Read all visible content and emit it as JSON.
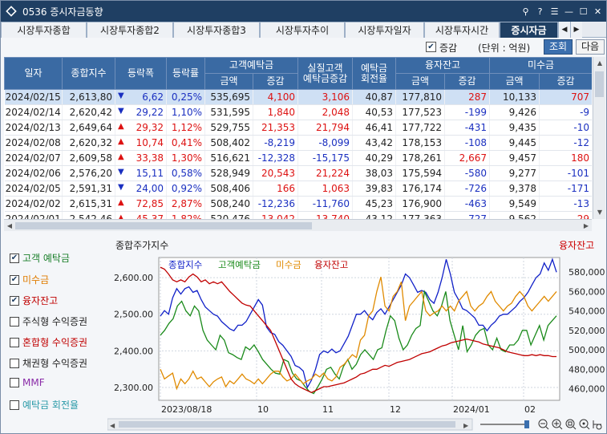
{
  "window": {
    "title": "0536 증시자금동향",
    "icons": [
      "pin-icon",
      "help-icon",
      "settings-icon",
      "minimize-icon",
      "maximize-icon",
      "close-icon"
    ],
    "icon_glyphs": [
      "⚲",
      "?",
      "☰",
      "—",
      "☐",
      "✕"
    ]
  },
  "tabs": [
    {
      "label": "시장투자종합",
      "active": false
    },
    {
      "label": "시장투자종합2",
      "active": false
    },
    {
      "label": "시장투자종합3",
      "active": false
    },
    {
      "label": "시장투자추이",
      "active": false
    },
    {
      "label": "시장투자일자",
      "active": false
    },
    {
      "label": "시장투자시간",
      "active": false
    },
    {
      "label": "증시자금",
      "active": true
    }
  ],
  "options": {
    "change_label": "증감",
    "change_checked": true,
    "unit_label": "(단위 : 억원)",
    "query_button": "조회",
    "next_button": "다음"
  },
  "table": {
    "headers": {
      "date": "일자",
      "index": "종합지수",
      "change": "등락폭",
      "rate": "등락률",
      "deposit": "고객예탁금",
      "real_deposit_1": "실질고객",
      "real_deposit_2": "예탁금증감",
      "turnover_1": "예탁금",
      "turnover_2": "회전율",
      "margin": "융자잔고",
      "receivable": "미수금",
      "amount": "금액",
      "delta": "증감"
    },
    "rows": [
      {
        "date": "2024/02/15",
        "index": "2,613,80",
        "dir": "down",
        "change": "6,62",
        "rate": "0,25%",
        "dep_amt": "535,695",
        "dep_chg": "4,100",
        "real": "3,106",
        "turn": "40,87",
        "mar_amt": "177,810",
        "mar_chg": "287",
        "rec_amt": "10,133",
        "rec_chg": "707"
      },
      {
        "date": "2024/02/14",
        "index": "2,620,42",
        "dir": "down",
        "change": "29,22",
        "rate": "1,10%",
        "dep_amt": "531,595",
        "dep_chg": "1,840",
        "real": "2,048",
        "turn": "40,53",
        "mar_amt": "177,523",
        "mar_chg": "-199",
        "rec_amt": "9,426",
        "rec_chg": "-9"
      },
      {
        "date": "2024/02/13",
        "index": "2,649,64",
        "dir": "up",
        "change": "29,32",
        "rate": "1,12%",
        "dep_amt": "529,755",
        "dep_chg": "21,353",
        "real": "21,794",
        "turn": "46,41",
        "mar_amt": "177,722",
        "mar_chg": "-431",
        "rec_amt": "9,435",
        "rec_chg": "-10"
      },
      {
        "date": "2024/02/08",
        "index": "2,620,32",
        "dir": "up",
        "change": "10,74",
        "rate": "0,41%",
        "dep_amt": "508,402",
        "dep_chg": "-8,219",
        "real": "-8,099",
        "turn": "43,42",
        "mar_amt": "178,153",
        "mar_chg": "-108",
        "rec_amt": "9,445",
        "rec_chg": "-12"
      },
      {
        "date": "2024/02/07",
        "index": "2,609,58",
        "dir": "up",
        "change": "33,38",
        "rate": "1,30%",
        "dep_amt": "516,621",
        "dep_chg": "-12,328",
        "real": "-15,175",
        "turn": "40,29",
        "mar_amt": "178,261",
        "mar_chg": "2,667",
        "rec_amt": "9,457",
        "rec_chg": "180"
      },
      {
        "date": "2024/02/06",
        "index": "2,576,20",
        "dir": "down",
        "change": "15,11",
        "rate": "0,58%",
        "dep_amt": "528,949",
        "dep_chg": "20,543",
        "real": "21,224",
        "turn": "38,03",
        "mar_amt": "175,594",
        "mar_chg": "-580",
        "rec_amt": "9,277",
        "rec_chg": "-101"
      },
      {
        "date": "2024/02/05",
        "index": "2,591,31",
        "dir": "down",
        "change": "24,00",
        "rate": "0,92%",
        "dep_amt": "508,406",
        "dep_chg": "166",
        "real": "1,063",
        "turn": "39,83",
        "mar_amt": "176,174",
        "mar_chg": "-726",
        "rec_amt": "9,378",
        "rec_chg": "-171"
      },
      {
        "date": "2024/02/02",
        "index": "2,615,31",
        "dir": "up",
        "change": "72,85",
        "rate": "2,87%",
        "dep_amt": "508,240",
        "dep_chg": "-12,236",
        "real": "-11,760",
        "turn": "45,23",
        "mar_amt": "176,900",
        "mar_chg": "-463",
        "rec_amt": "9,549",
        "rec_chg": "-13"
      },
      {
        "date": "2024/02/01",
        "index": "2,542,46",
        "dir": "up",
        "change": "45,37",
        "rate": "1,82%",
        "dep_amt": "520,476",
        "dep_chg": "13,042",
        "real": "13,740",
        "turn": "43,12",
        "mar_amt": "177,363",
        "mar_chg": "-727",
        "rec_amt": "9,562",
        "rec_chg": "29"
      }
    ]
  },
  "legend": [
    {
      "label": "고객 예탁금",
      "checked": true,
      "color": "#1a7f2a"
    },
    {
      "label": "미수금",
      "checked": true,
      "color": "#e07b00"
    },
    {
      "label": "융자잔고",
      "checked": true,
      "color": "#c00000"
    },
    {
      "label": "주식형 수익증권",
      "checked": false,
      "color": "#222222"
    },
    {
      "label": "혼합형 수익증권",
      "checked": false,
      "color": "#c00000"
    },
    {
      "label": "채권형 수익증권",
      "checked": false,
      "color": "#222222"
    },
    {
      "label": "MMF",
      "checked": false,
      "color": "#8a2ca8"
    },
    {
      "label": "예탁금 회전율",
      "checked": false,
      "color": "#2a9aa8"
    }
  ],
  "chart_data": {
    "type": "line",
    "title": "종합주가지수",
    "right_title": "융자잔고",
    "legend_entries": [
      {
        "name": "종합지수",
        "color": "#1020c8"
      },
      {
        "name": "고객예탁금",
        "color": "#1a8a1a"
      },
      {
        "name": "미수금",
        "color": "#e08a00"
      },
      {
        "name": "융자잔고",
        "color": "#c00000"
      }
    ],
    "left_axis": {
      "ticks": [
        "2,600.00",
        "2,500.00",
        "2,400.00",
        "2,300.00"
      ],
      "values": [
        2600,
        2500,
        2400,
        2300
      ],
      "ylim": [
        2265,
        2655
      ]
    },
    "right_axis": {
      "ticks": [
        "580,000",
        "560,000",
        "540,000",
        "520,000",
        "500,000",
        "480,000",
        "460,000"
      ],
      "values": [
        580000,
        560000,
        540000,
        520000,
        500000,
        480000,
        460000
      ],
      "ylim": [
        448000,
        595000
      ]
    },
    "x_labels": [
      "2023/08/18",
      "10",
      "11",
      "12",
      "2024/01",
      "02"
    ],
    "series": [
      {
        "name": "종합지수",
        "axis": "left",
        "values": [
          2495,
          2510,
          2500,
          2545,
          2570,
          2555,
          2570,
          2575,
          2560,
          2565,
          2540,
          2520,
          2510,
          2500,
          2495,
          2480,
          2470,
          2460,
          2455,
          2470,
          2470,
          2480,
          2500,
          2520,
          2540,
          2525,
          2465,
          2450,
          2445,
          2425,
          2415,
          2400,
          2385,
          2360,
          2355,
          2345,
          2300,
          2320,
          2350,
          2390,
          2400,
          2395,
          2405,
          2395,
          2400,
          2420,
          2440,
          2470,
          2500,
          2500,
          2510,
          2495,
          2485,
          2505,
          2515,
          2500,
          2520,
          2540,
          2560,
          2580,
          2610,
          2600,
          2580,
          2560,
          2565,
          2560,
          2540,
          2530,
          2560,
          2600,
          2650,
          2610,
          2560,
          2540,
          2515,
          2510,
          2500,
          2490,
          2470,
          2470,
          2455,
          2470,
          2480,
          2495,
          2500,
          2500,
          2510,
          2520,
          2535,
          2545,
          2560,
          2580,
          2600,
          2610,
          2640,
          2620,
          2650,
          2615
        ]
      },
      {
        "name": "고객예탁금",
        "axis": "right",
        "values": [
          515000,
          520000,
          527000,
          532000,
          545000,
          550000,
          540000,
          535000,
          545000,
          540000,
          520000,
          510000,
          505000,
          500000,
          515000,
          510000,
          497000,
          495000,
          492000,
          490000,
          503000,
          500000,
          505000,
          498000,
          490000,
          485000,
          480000,
          476000,
          475000,
          490000,
          488000,
          476000,
          470000,
          468000,
          462000,
          457000,
          455000,
          462000,
          470000,
          480000,
          482000,
          475000,
          470000,
          483000,
          490000,
          480000,
          485000,
          495000,
          500000,
          495000,
          490000,
          500000,
          502000,
          520000,
          535000,
          530000,
          512000,
          500000,
          505000,
          515000,
          522000,
          525000,
          560000,
          550000,
          540000,
          535000,
          545000,
          560000,
          530000,
          515000,
          500000,
          525000,
          498000,
          505000,
          515000,
          520000,
          522000,
          505000,
          500000,
          512000,
          500000,
          498000,
          505000,
          505000,
          510000,
          520000,
          520000,
          505000,
          515000,
          525000,
          510000,
          525000,
          530000,
          535000
        ]
      },
      {
        "name": "미수금",
        "axis": "right",
        "values": [
          480000,
          470000,
          473000,
          476000,
          460000,
          470000,
          465000,
          470000,
          478000,
          470000,
          472000,
          467000,
          462000,
          467000,
          470000,
          472000,
          462000,
          468000,
          465000,
          470000,
          475000,
          470000,
          468000,
          465000,
          470000,
          465000,
          470000,
          475000,
          478000,
          478000,
          472000,
          468000,
          470000,
          475000,
          470000,
          465000,
          468000,
          470000,
          475000,
          472000,
          476000,
          470000,
          468000,
          472000,
          482000,
          485000,
          490000,
          495000,
          492000,
          510000,
          515000,
          535000,
          540000,
          560000,
          575000,
          545000,
          540000,
          555000,
          560000,
          570000,
          530000,
          545000,
          550000,
          555000,
          560000,
          540000,
          535000,
          538000,
          540000,
          545000,
          540000,
          545000,
          540000,
          550000,
          555000,
          560000,
          545000,
          540000,
          545000,
          548000,
          555000,
          560000,
          550000,
          545000,
          540000,
          545000,
          548000,
          555000,
          560000,
          555000,
          545000,
          540000,
          545000,
          550000,
          555000,
          550000,
          555000,
          560000
        ]
      },
      {
        "name": "융자잔고",
        "axis": "right",
        "values": [
          585000,
          583000,
          578000,
          572000,
          570000,
          572000,
          570000,
          575000,
          578000,
          575000,
          570000,
          572000,
          568000,
          570000,
          568000,
          570000,
          565000,
          560000,
          556000,
          552000,
          548000,
          546000,
          545000,
          540000,
          535000,
          530000,
          525000,
          520000,
          510000,
          500000,
          490000,
          480000,
          470000,
          465000,
          462000,
          460000,
          458000,
          456000,
          458000,
          460000,
          462000,
          462000,
          463000,
          464000,
          465000,
          466000,
          468000,
          470000,
          472000,
          475000,
          476000,
          478000,
          480000,
          480000,
          482000,
          484000,
          483000,
          485000,
          487000,
          488000,
          489000,
          490000,
          492000,
          494000,
          496000,
          497000,
          498000,
          500000,
          502000,
          504000,
          505000,
          507000,
          508000,
          509000,
          510000,
          511000,
          510000,
          509000,
          508000,
          506000,
          505000,
          504000,
          503000,
          502000,
          500000,
          498000,
          497000,
          496000,
          495000,
          494000,
          494000,
          495000,
          494000,
          495000,
          494000,
          494000,
          493000,
          493000
        ]
      }
    ]
  }
}
